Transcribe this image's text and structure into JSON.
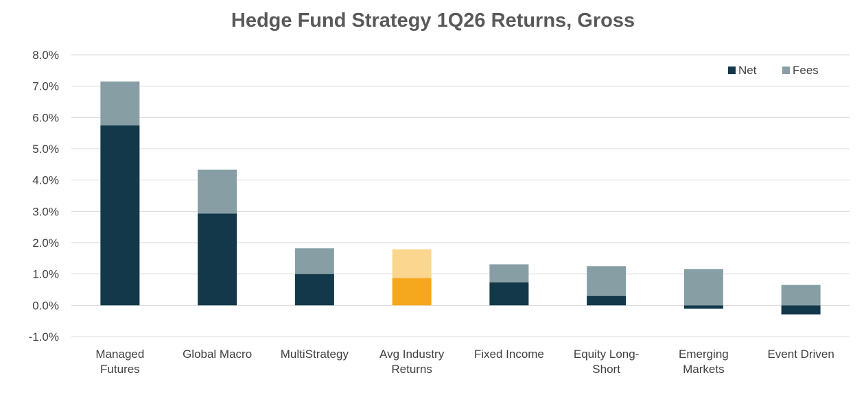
{
  "chart_data": {
    "type": "bar",
    "stacked": true,
    "title": "Hedge Fund Strategy 1Q26 Returns, Gross",
    "categories": [
      [
        "Managed",
        "Futures"
      ],
      [
        "Global Macro"
      ],
      [
        "MultiStrategy"
      ],
      [
        "Avg Industry",
        "Returns"
      ],
      [
        "Fixed Income"
      ],
      [
        "Equity Long-",
        "Short"
      ],
      [
        "Emerging",
        "Markets"
      ],
      [
        "Event Driven"
      ]
    ],
    "series": [
      {
        "name": "Net",
        "color": "#12384a",
        "values": [
          5.75,
          2.93,
          1.0,
          0.87,
          0.73,
          0.3,
          -0.11,
          -0.29
        ]
      },
      {
        "name": "Fees",
        "color": "#879ea5",
        "values": [
          1.4,
          1.4,
          0.82,
          0.92,
          0.58,
          0.95,
          1.16,
          0.65
        ]
      }
    ],
    "highlight": {
      "category_index": 3,
      "net_color": "#f5a71e",
      "fees_color": "#fbd68e"
    },
    "y_axis": {
      "min": -1.0,
      "max": 8.0,
      "step": 1.0,
      "tick_labels": [
        "-1.0%",
        "0.0%",
        "1.0%",
        "2.0%",
        "3.0%",
        "4.0%",
        "5.0%",
        "6.0%",
        "7.0%",
        "8.0%"
      ]
    },
    "gridlines": true,
    "legend_position": "top-right",
    "text_color": "#404040",
    "grid_color": "#d9d9d9"
  }
}
